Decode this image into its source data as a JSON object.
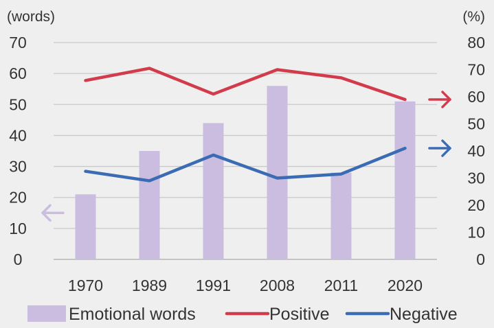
{
  "chart_data": {
    "type": "bar",
    "categories": [
      "1970",
      "1989",
      "1991",
      "2008",
      "2011",
      "2020"
    ],
    "left_axis": {
      "unit_label": "(words)",
      "ylim": [
        0,
        70
      ],
      "ticks": [
        "0",
        "10",
        "20",
        "30",
        "40",
        "50",
        "60",
        "70"
      ]
    },
    "right_axis": {
      "unit_label": "(%)",
      "ylim": [
        0,
        80
      ],
      "ticks": [
        "0",
        "10",
        "20",
        "30",
        "40",
        "50",
        "60",
        "70",
        "80"
      ]
    },
    "series": [
      {
        "name": "Emotional words",
        "kind": "bar",
        "axis": "left",
        "color": "#cbbde0",
        "values": [
          21,
          35,
          44,
          56,
          28,
          51
        ]
      },
      {
        "name": "Positive",
        "kind": "line",
        "axis": "right",
        "color": "#d23b4c",
        "values": [
          66,
          70.5,
          61,
          70,
          67,
          59
        ]
      },
      {
        "name": "Negative",
        "kind": "line",
        "axis": "right",
        "color": "#3b6bb3",
        "values": [
          32.5,
          29,
          38.5,
          30,
          31.5,
          41
        ]
      }
    ],
    "grid": true,
    "legend": "bottom",
    "axis_indicators": [
      {
        "series": "Emotional words",
        "direction": "left",
        "color": "#cbbde0"
      },
      {
        "series": "Positive",
        "direction": "right",
        "color": "#d23b4c"
      },
      {
        "series": "Negative",
        "direction": "right",
        "color": "#3b6bb3"
      }
    ]
  }
}
